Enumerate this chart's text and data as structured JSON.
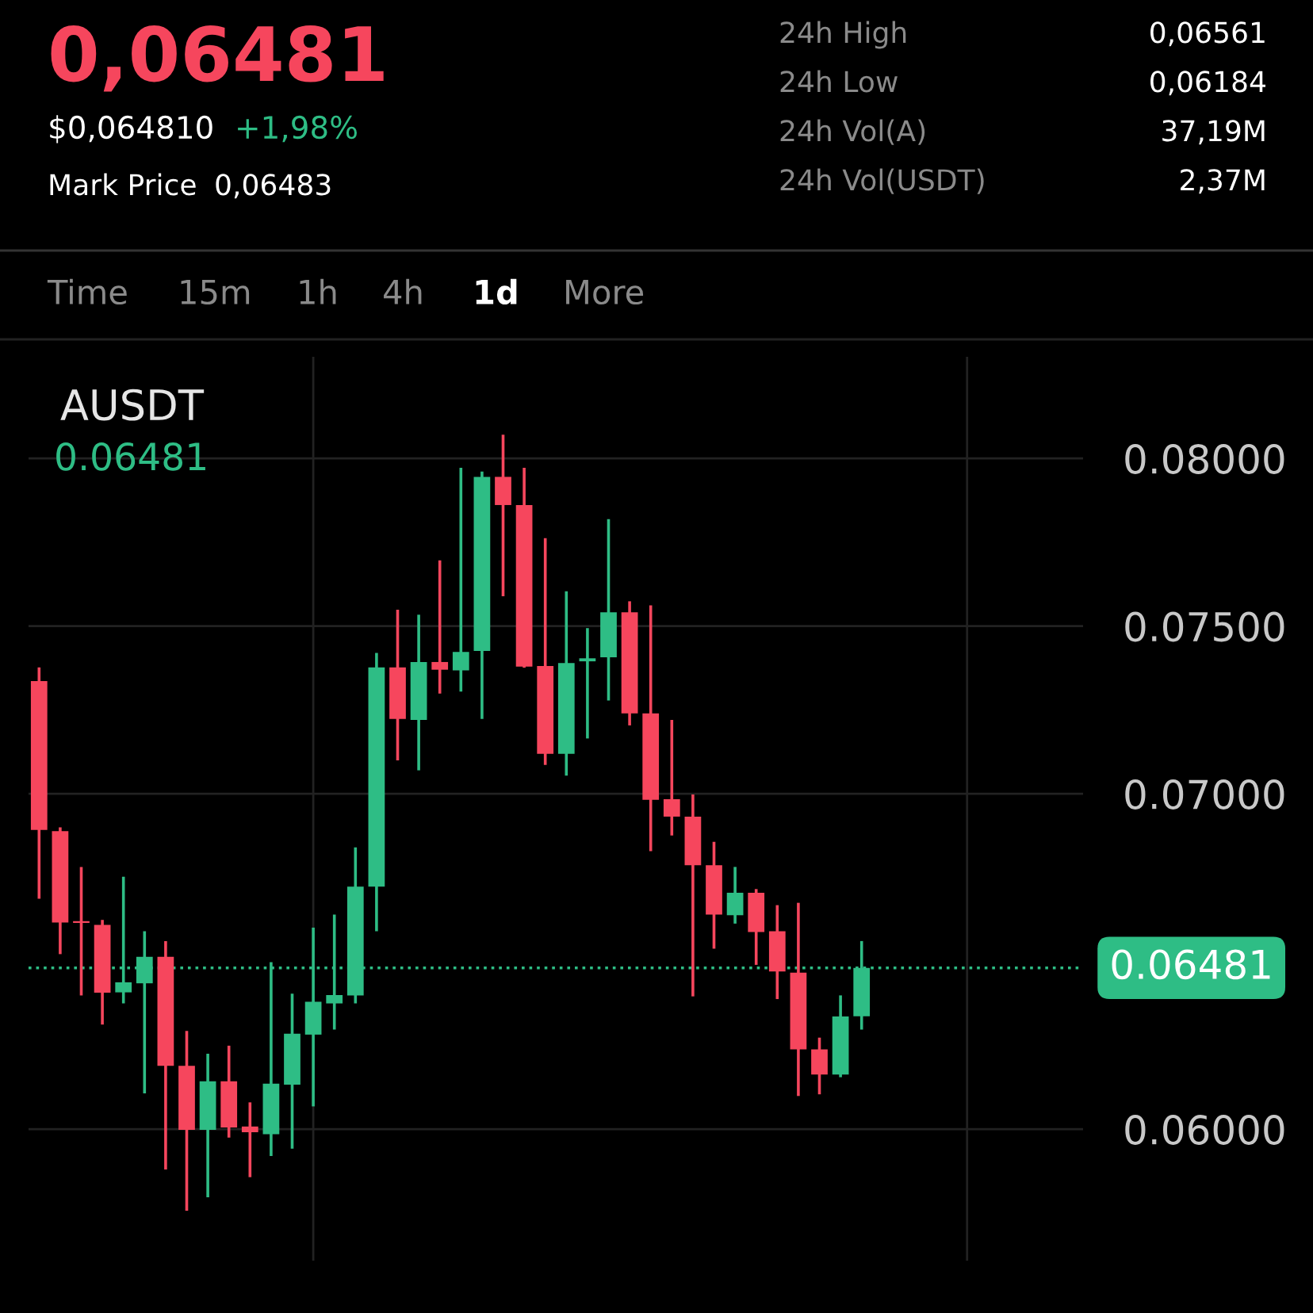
{
  "chart_data": {
    "type": "candlestick",
    "title": "AUSDT",
    "categories": [
      null,
      null,
      null,
      null,
      null,
      null,
      null,
      null,
      null,
      null,
      null,
      null,
      null,
      null,
      null,
      null,
      null,
      null,
      null,
      null,
      null,
      null,
      null,
      null,
      null,
      null,
      null,
      null,
      null,
      null,
      null,
      null,
      null,
      null,
      null,
      null,
      null,
      null,
      null,
      null,
      null,
      null,
      null,
      null,
      null,
      null,
      null,
      null,
      null,
      null
    ],
    "ohlc": [
      [
        0.07336,
        0.07377,
        0.06687,
        0.06892
      ],
      [
        0.06889,
        0.069,
        0.06522,
        0.06616
      ],
      [
        0.0662,
        0.06782,
        0.06399,
        0.06615
      ],
      [
        0.06609,
        0.06624,
        0.06312,
        0.06407
      ],
      [
        0.06408,
        0.06753,
        0.06375,
        0.06438
      ],
      [
        0.06435,
        0.0659,
        0.06107,
        0.06514
      ],
      [
        0.06514,
        0.06561,
        0.0588,
        0.06189
      ],
      [
        0.06189,
        0.06293,
        0.05757,
        0.05998
      ],
      [
        0.05998,
        0.06225,
        0.05797,
        0.06143
      ],
      [
        0.06143,
        0.06249,
        0.05975,
        0.06005
      ],
      [
        0.06008,
        0.0608,
        0.05857,
        0.05991
      ],
      [
        0.05985,
        0.06498,
        0.0592,
        0.06136
      ],
      [
        0.06133,
        0.06404,
        0.05942,
        0.06285
      ],
      [
        0.06282,
        0.06601,
        0.06068,
        0.0638
      ],
      [
        0.06375,
        0.0664,
        0.06297,
        0.064
      ],
      [
        0.06399,
        0.0684,
        0.06375,
        0.06723
      ],
      [
        0.06723,
        0.0742,
        0.0659,
        0.07377
      ],
      [
        0.07377,
        0.07549,
        0.071,
        0.07223
      ],
      [
        0.0722,
        0.07534,
        0.0707,
        0.07393
      ],
      [
        0.07393,
        0.07696,
        0.07299,
        0.0737
      ],
      [
        0.07368,
        0.07972,
        0.07305,
        0.07423
      ],
      [
        0.07426,
        0.07961,
        0.07223,
        0.07945
      ],
      [
        0.07945,
        0.08071,
        0.07589,
        0.07861
      ],
      [
        0.07861,
        0.07972,
        0.07376,
        0.07379
      ],
      [
        0.07381,
        0.07762,
        0.07086,
        0.07119
      ],
      [
        0.07119,
        0.07604,
        0.07054,
        0.0739
      ],
      [
        0.07395,
        0.07494,
        0.07165,
        0.07404
      ],
      [
        0.07407,
        0.07819,
        0.07278,
        0.07541
      ],
      [
        0.07541,
        0.07574,
        0.07204,
        0.0724
      ],
      [
        0.0724,
        0.07562,
        0.06829,
        0.06982
      ],
      [
        0.06984,
        0.0722,
        0.06876,
        0.06932
      ],
      [
        0.06932,
        0.06998,
        0.06396,
        0.06787
      ],
      [
        0.06787,
        0.06857,
        0.06538,
        0.0664
      ],
      [
        0.06638,
        0.06782,
        0.06613,
        0.06705
      ],
      [
        0.06705,
        0.06716,
        0.0649,
        0.06588
      ],
      [
        0.0659,
        0.06668,
        0.06388,
        0.0647
      ],
      [
        0.06467,
        0.06675,
        0.06099,
        0.06238
      ],
      [
        0.06238,
        0.06273,
        0.06104,
        0.06163
      ],
      [
        0.06163,
        0.06399,
        0.06155,
        0.06336
      ],
      [
        0.06337,
        0.06561,
        0.06297,
        0.06481
      ],
      null,
      null,
      null,
      null,
      null,
      null,
      null,
      null,
      null,
      null
    ],
    "colors": [
      "#f6465d",
      "#f6465d",
      "#f6465d",
      "#f6465d",
      "#2ebd85",
      "#2ebd85",
      "#f6465d",
      "#f6465d",
      "#2ebd85",
      "#f6465d",
      "#f6465d",
      "#2ebd85",
      "#2ebd85",
      "#2ebd85",
      "#2ebd85",
      "#2ebd85",
      "#2ebd85",
      "#f6465d",
      "#2ebd85",
      "#f6465d",
      "#2ebd85",
      "#2ebd85",
      "#f6465d",
      "#f6465d",
      "#f6465d",
      "#2ebd85",
      "#2ebd85",
      "#2ebd85",
      "#f6465d",
      "#f6465d",
      "#f6465d",
      "#f6465d",
      "#f6465d",
      "#2ebd85",
      "#f6465d",
      "#f6465d",
      "#f6465d",
      "#f6465d",
      "#2ebd85",
      "#2ebd85",
      null,
      null,
      null,
      null,
      null,
      null,
      null,
      null,
      null,
      null
    ],
    "ylim": [
      0.05608,
      0.08303
    ],
    "yticks": [
      {
        "value": 0.06,
        "label": "0.06000"
      },
      {
        "value": 0.07,
        "label": "0.07000"
      },
      {
        "value": 0.075,
        "label": "0.07500"
      },
      {
        "value": 0.08,
        "label": "0.08000"
      }
    ],
    "grid": "y",
    "tick_labels": "y",
    "ref_lines": [
      {
        "axis": "y",
        "value": 0.06481,
        "label": "0.06481",
        "color": "#2ebd85",
        "line_style": "dotted"
      }
    ],
    "annotations": [
      "0,06481",
      "$0,064810",
      "+1,98%",
      "Mark Price",
      "0,06483",
      "24h High",
      "0,06561",
      "24h Low",
      "0,06184",
      "24h Vol(A)",
      "37,19M",
      "24h Vol(USDT)",
      "2,37M",
      "Time",
      "15m",
      "1h",
      "4h",
      "1d",
      "More",
      "0.06481"
    ]
  }
}
